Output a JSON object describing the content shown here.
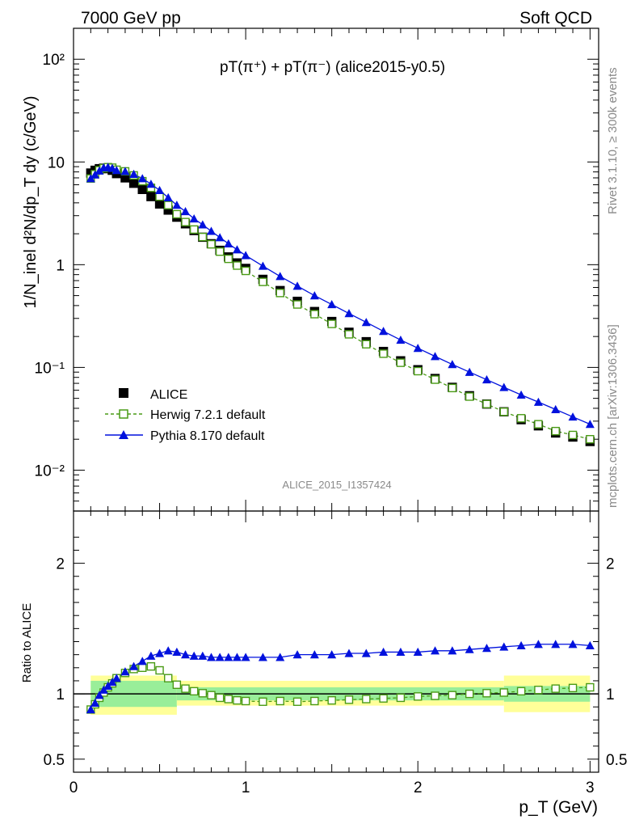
{
  "header": {
    "left_label": "7000 GeV pp",
    "right_label": "Soft QCD"
  },
  "side_text": {
    "rivet": "Rivet 3.1.10, ≥ 300k events",
    "mcplots": "mcplots.cern.ch [arXiv:1306.3436]"
  },
  "chart_data": {
    "type": "scatter",
    "title": "pT(π⁺) + pT(π⁻) (alice2015-y0.5)",
    "analysis_id": "ALICE_2015_I1357424",
    "xlabel": "p_T (GeV)",
    "ylabel": "1/N_inel d²N/dp_T dy (c/GeV)",
    "ratio_ylabel": "Ratio to ALICE",
    "xlim": [
      0,
      3.05
    ],
    "ylim": [
      0.004,
      200
    ],
    "ratio_ylim": [
      0.4,
      2.4
    ],
    "x_ticks": [
      "0",
      "1",
      "2",
      "3"
    ],
    "y_ticks": [
      "10⁻²",
      "10⁻¹",
      "1",
      "10",
      "10²"
    ],
    "ratio_ticks": [
      "0.5",
      "1",
      "2"
    ],
    "x": [
      0.1,
      0.125,
      0.15,
      0.175,
      0.2,
      0.225,
      0.25,
      0.3,
      0.35,
      0.4,
      0.45,
      0.5,
      0.55,
      0.6,
      0.65,
      0.7,
      0.75,
      0.8,
      0.85,
      0.9,
      0.95,
      1.0,
      1.1,
      1.2,
      1.3,
      1.4,
      1.5,
      1.6,
      1.7,
      1.8,
      1.9,
      2.0,
      2.1,
      2.2,
      2.3,
      2.4,
      2.5,
      2.6,
      2.7,
      2.8,
      2.9,
      3.0
    ],
    "series": [
      {
        "name": "ALICE",
        "values": [
          7.8,
          8.3,
          8.6,
          8.7,
          8.6,
          8.3,
          7.7,
          7.0,
          6.2,
          5.4,
          4.6,
          3.9,
          3.4,
          2.9,
          2.5,
          2.15,
          1.85,
          1.6,
          1.38,
          1.19,
          1.04,
          0.92,
          0.72,
          0.56,
          0.44,
          0.35,
          0.28,
          0.22,
          0.178,
          0.143,
          0.116,
          0.095,
          0.078,
          0.064,
          0.053,
          0.044,
          0.037,
          0.031,
          0.027,
          0.023,
          0.021,
          0.019
        ]
      },
      {
        "name": "Herwig 7.2.1 default",
        "values": [
          6.9,
          7.6,
          8.3,
          8.7,
          8.9,
          8.8,
          8.4,
          8.1,
          7.4,
          6.5,
          5.6,
          4.6,
          3.8,
          3.1,
          2.6,
          2.2,
          1.86,
          1.58,
          1.34,
          1.14,
          0.98,
          0.87,
          0.68,
          0.53,
          0.41,
          0.33,
          0.265,
          0.21,
          0.168,
          0.136,
          0.111,
          0.092,
          0.076,
          0.063,
          0.052,
          0.044,
          0.037,
          0.032,
          0.028,
          0.024,
          0.022,
          0.02
        ]
      },
      {
        "name": "Pythia 8.170 default",
        "values": [
          6.9,
          7.5,
          8.2,
          8.8,
          8.9,
          8.7,
          8.3,
          8.1,
          7.6,
          6.9,
          6.1,
          5.3,
          4.5,
          3.8,
          3.3,
          2.8,
          2.45,
          2.12,
          1.84,
          1.6,
          1.4,
          1.23,
          0.97,
          0.77,
          0.62,
          0.5,
          0.41,
          0.335,
          0.275,
          0.225,
          0.185,
          0.154,
          0.128,
          0.107,
          0.09,
          0.076,
          0.064,
          0.054,
          0.046,
          0.039,
          0.033,
          0.028
        ]
      }
    ],
    "ratio_series": [
      {
        "name": "Herwig 7.2.1 default",
        "values": [
          0.88,
          0.92,
          0.97,
          1.01,
          1.05,
          1.08,
          1.12,
          1.16,
          1.19,
          1.2,
          1.21,
          1.18,
          1.12,
          1.07,
          1.04,
          1.02,
          1.005,
          0.99,
          0.97,
          0.96,
          0.95,
          0.945,
          0.94,
          0.945,
          0.94,
          0.945,
          0.95,
          0.955,
          0.96,
          0.965,
          0.97,
          0.98,
          0.985,
          0.99,
          1.0,
          1.005,
          1.01,
          1.02,
          1.03,
          1.04,
          1.045,
          1.05
        ]
      },
      {
        "name": "Pythia 8.170 default",
        "values": [
          0.88,
          0.93,
          0.99,
          1.03,
          1.06,
          1.09,
          1.12,
          1.17,
          1.21,
          1.25,
          1.29,
          1.31,
          1.33,
          1.32,
          1.3,
          1.29,
          1.29,
          1.28,
          1.28,
          1.28,
          1.28,
          1.28,
          1.28,
          1.28,
          1.3,
          1.3,
          1.3,
          1.31,
          1.31,
          1.32,
          1.32,
          1.32,
          1.33,
          1.33,
          1.34,
          1.35,
          1.36,
          1.37,
          1.38,
          1.38,
          1.38,
          1.37
        ]
      }
    ],
    "ratio_band_edges": [
      0.1,
      0.6,
      2.5,
      3.0
    ],
    "ratio_band_inner": [
      [
        0.9,
        1.1
      ],
      [
        0.95,
        1.05
      ],
      [
        0.94,
        1.06
      ],
      [
        0.92,
        1.09
      ]
    ],
    "ratio_band_outer": [
      [
        0.84,
        1.14
      ],
      [
        0.91,
        1.1
      ],
      [
        0.86,
        1.14
      ],
      [
        0.82,
        1.17
      ]
    ],
    "colors": {
      "data": "#000000",
      "herwig": "#4a9b16",
      "pythia": "#0011dd",
      "band_inner": "#99ee99",
      "band_outer": "#ffff99"
    },
    "legend_position": "lower-left"
  }
}
